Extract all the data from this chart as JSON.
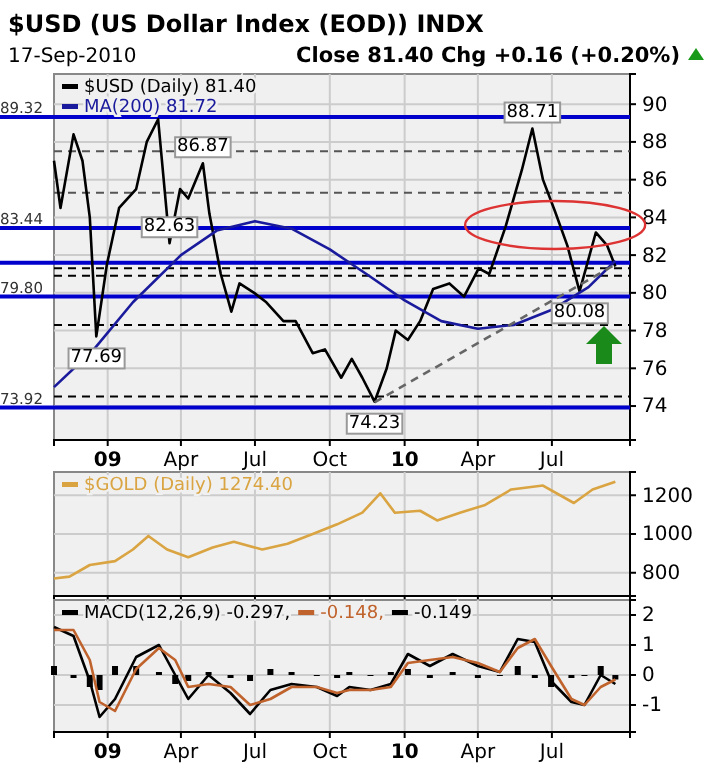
{
  "chart_data": [
    {
      "type": "line",
      "title": "$USD (US Dollar Index (EOD)) INDX",
      "subtitle": "17-Sep-2010",
      "annotations": [
        "Close 81.40 Chg +0.16 (+0.20%)",
        {
          "text": "88.71",
          "x": "2010-06-07",
          "y": 88.71
        },
        {
          "text": "86.87",
          "x": "2009-04-28",
          "y": 86.87
        },
        {
          "text": "82.63",
          "x": "2009-03-18",
          "y": 82.63
        },
        {
          "text": "77.69",
          "x": "2008-12-18",
          "y": 77.69
        },
        {
          "text": "74.23",
          "x": "2009-11-25",
          "y": 74.23
        },
        {
          "text": "80.08",
          "x": "2010-08-04",
          "y": 80.08
        }
      ],
      "xlim": [
        "2008-10-27",
        "2010-10-05"
      ],
      "ylim": [
        72.2,
        91.6
      ],
      "xticks": [
        {
          "value": "2009-01-01",
          "label": "09"
        },
        {
          "value": "2009-04-01",
          "label": "Apr"
        },
        {
          "value": "2009-07-01",
          "label": "Jul"
        },
        {
          "value": "2009-10-01",
          "label": "Oct"
        },
        {
          "value": "2010-01-01",
          "label": "10"
        },
        {
          "value": "2010-04-01",
          "label": "Apr"
        },
        {
          "value": "2010-07-01",
          "label": "Jul"
        }
      ],
      "yticks": [
        74,
        76,
        78,
        80,
        82,
        84,
        86,
        88,
        90
      ],
      "grid": true,
      "legend": "top left",
      "ref_lines": [
        {
          "axis": "y",
          "value": 89.32,
          "label": "89.32",
          "color": "#0000cc"
        },
        {
          "axis": "y",
          "value": 83.44,
          "label": "83.44",
          "color": "#0000cc"
        },
        {
          "axis": "y",
          "value": 81.6,
          "label": null,
          "color": "#0000cc"
        },
        {
          "axis": "y",
          "value": 79.8,
          "label": "79.80",
          "color": "#0000cc"
        },
        {
          "axis": "y",
          "value": 73.92,
          "label": "73.92",
          "color": "#0000cc"
        },
        {
          "axis": "y",
          "value": 87.5,
          "label": null,
          "color": "#555555",
          "line_style": "dashed"
        },
        {
          "axis": "y",
          "value": 85.3,
          "label": null,
          "color": "#555555",
          "line_style": "dashed"
        },
        {
          "axis": "y",
          "value": 81.3,
          "label": null,
          "color": "#000000",
          "line_style": "dashed"
        },
        {
          "axis": "y",
          "value": 80.9,
          "label": null,
          "color": "#000000",
          "line_style": "dashed"
        },
        {
          "axis": "y",
          "value": 78.3,
          "label": null,
          "color": "#000000",
          "line_style": "dashed"
        },
        {
          "axis": "y",
          "value": 74.5,
          "label": null,
          "color": "#000000",
          "line_style": "dashed"
        }
      ],
      "series": [
        {
          "name": "$USD (Daily) 81.40",
          "color": "#000000",
          "x": [
            "2008-10-27",
            "2008-11-04",
            "2008-11-20",
            "2008-12-01",
            "2008-12-10",
            "2008-12-18",
            "2008-12-31",
            "2009-01-15",
            "2009-02-05",
            "2009-02-18",
            "2009-03-04",
            "2009-03-18",
            "2009-03-31",
            "2009-04-10",
            "2009-04-28",
            "2009-05-06",
            "2009-05-20",
            "2009-06-02",
            "2009-06-12",
            "2009-06-30",
            "2009-07-15",
            "2009-08-05",
            "2009-08-20",
            "2009-09-10",
            "2009-09-25",
            "2009-10-15",
            "2009-10-28",
            "2009-11-10",
            "2009-11-25",
            "2009-12-10",
            "2009-12-21",
            "2010-01-05",
            "2010-01-20",
            "2010-02-05",
            "2010-02-25",
            "2010-03-15",
            "2010-04-02",
            "2010-04-15",
            "2010-05-05",
            "2010-05-25",
            "2010-06-07",
            "2010-06-20",
            "2010-07-05",
            "2010-07-20",
            "2010-08-04",
            "2010-08-24",
            "2010-09-07",
            "2010-09-17"
          ],
          "values": [
            87.0,
            84.5,
            88.4,
            87.0,
            84.0,
            77.69,
            81.5,
            84.5,
            85.5,
            88.0,
            89.2,
            82.63,
            85.5,
            85.0,
            86.87,
            84.2,
            81.0,
            79.0,
            80.5,
            80.0,
            79.5,
            78.5,
            78.5,
            76.8,
            77.0,
            75.5,
            76.5,
            75.5,
            74.23,
            76.0,
            78.0,
            77.5,
            78.5,
            80.2,
            80.5,
            79.8,
            81.3,
            81.0,
            83.5,
            86.5,
            88.71,
            86.0,
            84.3,
            82.5,
            80.08,
            83.2,
            82.5,
            81.4
          ]
        },
        {
          "name": "MA(200) 81.72",
          "color": "#1a1a9c",
          "x": [
            "2008-10-27",
            "2008-12-15",
            "2009-02-01",
            "2009-04-01",
            "2009-05-15",
            "2009-07-01",
            "2009-08-15",
            "2009-10-01",
            "2009-11-15",
            "2010-01-01",
            "2010-02-15",
            "2010-04-01",
            "2010-05-15",
            "2010-07-01",
            "2010-08-15",
            "2010-09-17"
          ],
          "values": [
            75.0,
            77.0,
            79.5,
            82.0,
            83.3,
            83.8,
            83.4,
            82.3,
            81.0,
            79.6,
            78.5,
            78.1,
            78.3,
            79.1,
            80.3,
            81.7
          ]
        },
        {
          "color": "#666666",
          "line_style": "dashed",
          "x": [
            "2009-11-25",
            "2010-09-17"
          ],
          "values": [
            74.2,
            81.5
          ]
        }
      ]
    },
    {
      "type": "line",
      "xlim": [
        "2008-10-27",
        "2010-10-05"
      ],
      "ylim": [
        680,
        1320
      ],
      "xticks": [
        {
          "value": "2009-01-01",
          "label": null
        },
        {
          "value": "2009-04-01",
          "label": null
        },
        {
          "value": "2009-07-01",
          "label": null
        },
        {
          "value": "2009-10-01",
          "label": null
        },
        {
          "value": "2010-01-01",
          "label": null
        },
        {
          "value": "2010-04-01",
          "label": null
        },
        {
          "value": "2010-07-01",
          "label": null
        }
      ],
      "yticks": [
        800,
        1000,
        1200
      ],
      "grid": true,
      "legend": "top left",
      "tick_labels": "y",
      "series": [
        {
          "name": "$GOLD (Daily) 1274.40",
          "color": "#d9a441",
          "x": [
            "2008-10-27",
            "2008-11-15",
            "2008-12-10",
            "2009-01-10",
            "2009-02-01",
            "2009-02-20",
            "2009-03-15",
            "2009-04-10",
            "2009-05-10",
            "2009-06-05",
            "2009-07-10",
            "2009-08-10",
            "2009-09-10",
            "2009-10-10",
            "2009-11-10",
            "2009-12-02",
            "2009-12-20",
            "2010-01-20",
            "2010-02-10",
            "2010-03-10",
            "2010-04-10",
            "2010-05-12",
            "2010-06-20",
            "2010-07-28",
            "2010-08-20",
            "2010-09-17"
          ],
          "values": [
            770,
            780,
            840,
            860,
            920,
            990,
            920,
            880,
            930,
            960,
            920,
            950,
            1000,
            1050,
            1110,
            1210,
            1110,
            1120,
            1070,
            1110,
            1150,
            1230,
            1250,
            1160,
            1230,
            1270
          ]
        }
      ]
    },
    {
      "type": "line",
      "xlim": [
        "2008-10-27",
        "2010-10-05"
      ],
      "ylim": [
        -1.9,
        2.5
      ],
      "xticks": [
        {
          "value": "2009-01-01",
          "label": "09"
        },
        {
          "value": "2009-04-01",
          "label": "Apr"
        },
        {
          "value": "2009-07-01",
          "label": "Jul"
        },
        {
          "value": "2009-10-01",
          "label": "Oct"
        },
        {
          "value": "2010-01-01",
          "label": "10"
        },
        {
          "value": "2010-04-01",
          "label": "Apr"
        },
        {
          "value": "2010-07-01",
          "label": "Jul"
        }
      ],
      "yticks": [
        -1,
        0,
        1,
        2
      ],
      "grid": true,
      "legend": "top left",
      "x": [
        "2008-10-27",
        "2008-11-20",
        "2008-12-10",
        "2008-12-22",
        "2009-01-10",
        "2009-02-05",
        "2009-03-05",
        "2009-03-25",
        "2009-04-10",
        "2009-05-05",
        "2009-06-01",
        "2009-06-25",
        "2009-07-20",
        "2009-08-15",
        "2009-09-15",
        "2009-10-10",
        "2009-10-25",
        "2009-11-20",
        "2009-12-15",
        "2010-01-05",
        "2010-02-01",
        "2010-03-01",
        "2010-04-01",
        "2010-04-28",
        "2010-05-20",
        "2010-06-10",
        "2010-06-30",
        "2010-07-25",
        "2010-08-10",
        "2010-08-30",
        "2010-09-17"
      ],
      "series": [
        {
          "name": "-0.149",
          "type": "bar",
          "color": "#000000",
          "values": [
            0.3,
            -0.1,
            -0.4,
            -0.5,
            0.3,
            0.3,
            0.1,
            -0.3,
            -0.2,
            0.1,
            -0.1,
            -0.2,
            0.2,
            0.1,
            0.0,
            -0.1,
            0.1,
            0.0,
            0.1,
            0.2,
            -0.1,
            0.1,
            -0.1,
            0.0,
            0.3,
            -0.1,
            -0.4,
            -0.1,
            0.0,
            0.3,
            -0.15
          ]
        },
        {
          "name": "MACD(12,26,9) -0.297,",
          "color": "#000000",
          "values": [
            1.6,
            1.3,
            -0.2,
            -1.4,
            -0.8,
            0.6,
            1.0,
            0.0,
            -0.8,
            0.0,
            -0.6,
            -1.3,
            -0.5,
            -0.3,
            -0.4,
            -0.7,
            -0.4,
            -0.5,
            -0.3,
            0.7,
            0.3,
            0.7,
            0.3,
            0.1,
            1.2,
            1.1,
            -0.2,
            -0.9,
            -1.0,
            0.0,
            -0.3
          ]
        },
        {
          "name": "-0.148,",
          "color": "#c0622c",
          "values": [
            1.5,
            1.5,
            0.5,
            -0.9,
            -1.2,
            0.2,
            0.9,
            0.5,
            -0.4,
            -0.3,
            -0.4,
            -1.0,
            -0.8,
            -0.4,
            -0.4,
            -0.6,
            -0.5,
            -0.5,
            -0.4,
            0.4,
            0.5,
            0.6,
            0.4,
            0.1,
            0.9,
            1.2,
            0.3,
            -0.8,
            -1.0,
            -0.4,
            -0.15
          ]
        }
      ]
    }
  ]
}
